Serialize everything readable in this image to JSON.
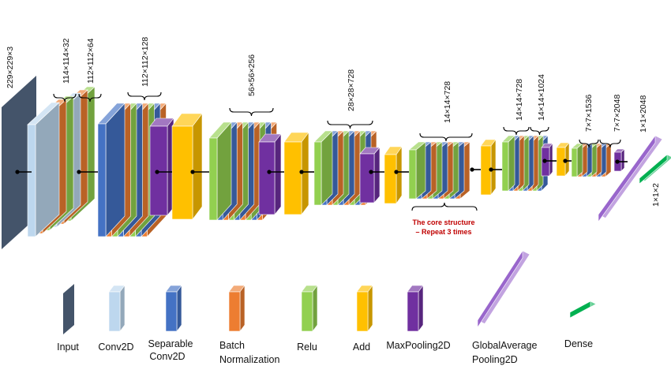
{
  "colors": {
    "input": "#44546a",
    "conv2d": "#bdd7ee",
    "separable_conv2d": "#4472c4",
    "batch_normalization": "#ed7d31",
    "relu": "#92d050",
    "add": "#ffc000",
    "max_pooling2d": "#7030a0",
    "global_average_pooling2d": "#9966cc",
    "dense": "#00b050",
    "note_red": "#c00000"
  },
  "dimensions": {
    "input": "229×229×3",
    "conv1": "114×114×32",
    "conv2": "112×112×64",
    "block1": "112×112×128",
    "block2": "56×56×256",
    "block3": "28×28×728",
    "middle": "14×14×728",
    "exit_a": "14×14×728",
    "exit_b": "14×14×1024",
    "exit_c": "7×7×1536",
    "exit_d": "7×7×2048",
    "gap": "1×1×2048",
    "dense": "1×1×2"
  },
  "note": {
    "line1": "The core structure",
    "line2": "– Repeat 3 times"
  },
  "legend": {
    "input": "Input",
    "conv2d": "Conv2D",
    "separable_line1": "Separable",
    "separable_line2": "Conv2D",
    "batch_line1": "Batch",
    "batch_line2": "Normalization",
    "relu": "Relu",
    "add": "Add",
    "maxpool": "MaxPooling2D",
    "gap_line1": "GlobalAverage",
    "gap_line2": "Pooling2D",
    "dense": "Dense"
  }
}
